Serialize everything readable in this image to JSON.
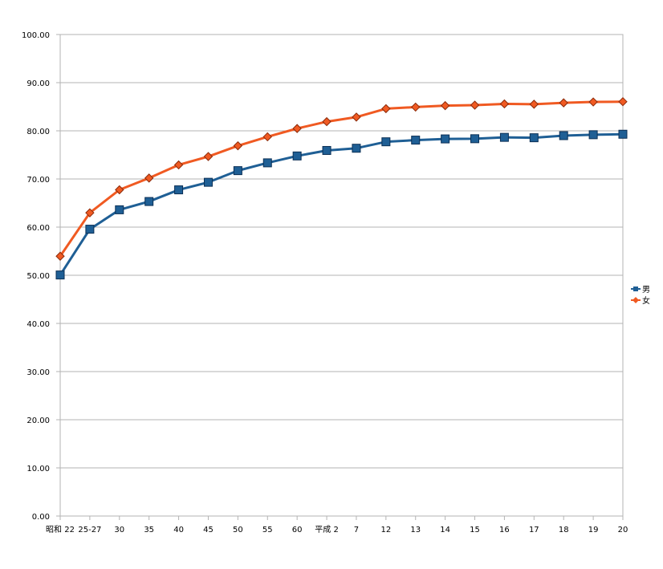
{
  "chart_data": {
    "type": "line",
    "title": "",
    "xlabel": "",
    "ylabel": "",
    "categories": [
      "昭和 22",
      "25-27",
      "30",
      "35",
      "40",
      "45",
      "50",
      "55",
      "60",
      "平成 2",
      "7",
      "12",
      "13",
      "14",
      "15",
      "16",
      "17",
      "18",
      "19",
      "20"
    ],
    "ylim": [
      0,
      100
    ],
    "yticks": [
      "0.00",
      "10.00",
      "20.00",
      "30.00",
      "40.00",
      "50.00",
      "60.00",
      "70.00",
      "80.00",
      "90.00",
      "100.00"
    ],
    "grid": true,
    "legend_position": "right",
    "series": [
      {
        "name": "男",
        "color": "#1f5f95",
        "marker": "square",
        "values": [
          50.06,
          59.57,
          63.6,
          65.32,
          67.74,
          69.31,
          71.73,
          73.35,
          74.78,
          75.92,
          76.38,
          77.72,
          78.07,
          78.32,
          78.36,
          78.64,
          78.56,
          79.0,
          79.19,
          79.29
        ]
      },
      {
        "name": "女",
        "color": "#f05a22",
        "marker": "diamond",
        "values": [
          53.96,
          62.97,
          67.75,
          70.19,
          72.92,
          74.66,
          76.89,
          78.76,
          80.48,
          81.9,
          82.85,
          84.6,
          84.93,
          85.23,
          85.33,
          85.59,
          85.52,
          85.81,
          85.99,
          86.05
        ]
      }
    ]
  }
}
